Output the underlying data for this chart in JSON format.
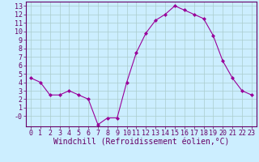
{
  "hours": [
    0,
    1,
    2,
    3,
    4,
    5,
    6,
    7,
    8,
    9,
    10,
    11,
    12,
    13,
    14,
    15,
    16,
    17,
    18,
    19,
    20,
    21,
    22,
    23
  ],
  "values": [
    4.5,
    4.0,
    2.5,
    2.5,
    3.0,
    2.5,
    2.0,
    -1.0,
    -0.2,
    -0.2,
    4.0,
    7.5,
    9.8,
    11.3,
    12.0,
    13.0,
    12.5,
    12.0,
    11.5,
    9.5,
    6.5,
    4.5,
    3.0,
    2.5
  ],
  "line_color": "#990099",
  "marker": "D",
  "marker_size": 2,
  "bg_color": "#cceeff",
  "grid_color": "#aacccc",
  "xlabel": "Windchill (Refroidissement éolien,°C)",
  "ylabel_ticks": [
    0,
    1,
    2,
    3,
    4,
    5,
    6,
    7,
    8,
    9,
    10,
    11,
    12,
    13
  ],
  "ylim": [
    -1.2,
    13.5
  ],
  "xlim": [
    -0.5,
    23.5
  ],
  "tick_fontsize": 6,
  "label_fontsize": 7,
  "axis_label_color": "#660066",
  "tick_color": "#660066",
  "border_color": "#660066"
}
